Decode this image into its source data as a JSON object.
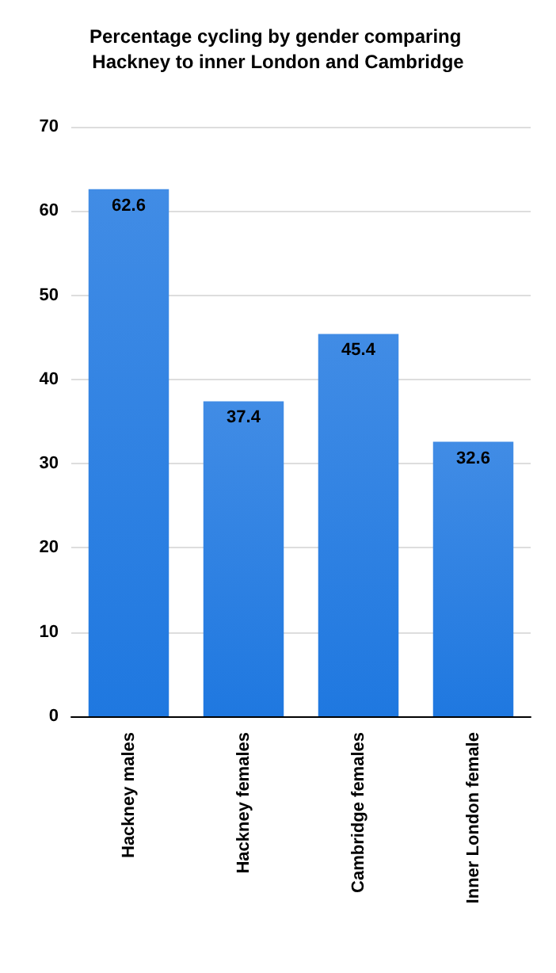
{
  "chart_data": {
    "type": "bar",
    "title": "Percentage cycling by gender comparing Hackney to inner London and Cambridge",
    "categories": [
      "Hackney males",
      "Hackney females",
      "Cambridge females",
      "Inner London female"
    ],
    "values": [
      62.6,
      37.4,
      45.4,
      32.6
    ],
    "color": "#1f78e0",
    "ylim": [
      0,
      70
    ],
    "yticks": [
      0,
      10,
      20,
      30,
      40,
      50,
      60,
      70
    ],
    "grid": "y",
    "data_labels": true
  }
}
